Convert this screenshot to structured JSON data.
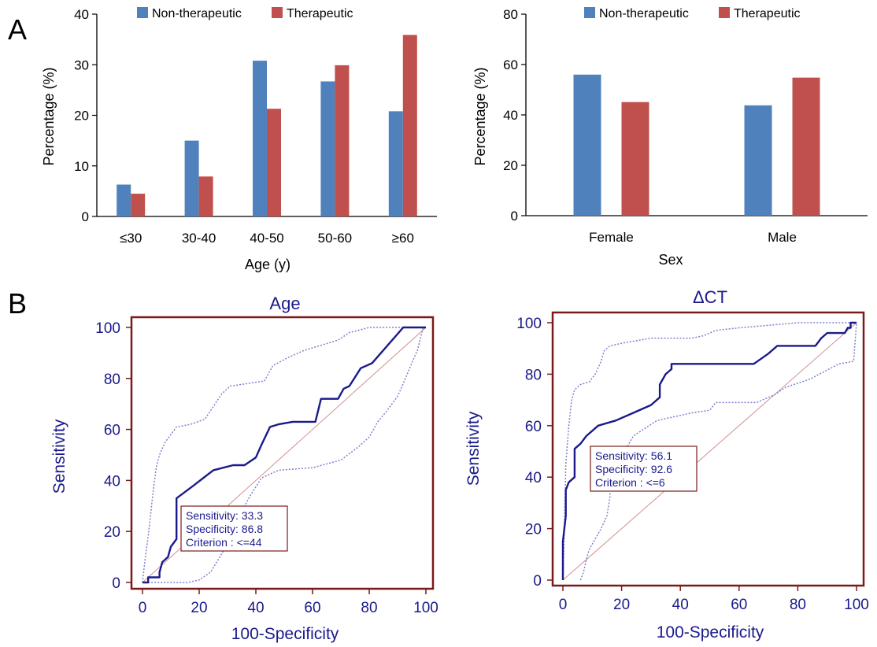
{
  "panel_labels": [
    "A",
    "B"
  ],
  "chart_data": [
    {
      "type": "bar",
      "panel": "A",
      "categories": [
        "≤30",
        "30-40",
        "40-50",
        "50-60",
        "≥60"
      ],
      "series": [
        {
          "name": "Non-therapeutic",
          "values": [
            6.3,
            15.0,
            30.8,
            26.7,
            20.8
          ]
        },
        {
          "name": "Therapeutic",
          "values": [
            4.5,
            7.9,
            21.3,
            29.9,
            35.9
          ]
        }
      ],
      "xlabel": "Age (y)",
      "ylabel": "Percentage (%)",
      "ylim": [
        0,
        40
      ],
      "yticks": [
        0,
        10,
        20,
        30,
        40
      ],
      "colors": [
        "#4f81bd",
        "#c0504d"
      ],
      "legend": "top"
    },
    {
      "type": "bar",
      "panel": "A",
      "categories": [
        "Female",
        "Male"
      ],
      "series": [
        {
          "name": "Non-therapeutic",
          "values": [
            56.0,
            43.8
          ]
        },
        {
          "name": "Therapeutic",
          "values": [
            45.1,
            54.8
          ]
        }
      ],
      "xlabel": "Sex",
      "ylabel": "Percentage (%)",
      "ylim": [
        0,
        80
      ],
      "yticks": [
        0,
        20,
        40,
        60,
        80
      ],
      "colors": [
        "#4f81bd",
        "#c0504d"
      ],
      "legend": "top"
    },
    {
      "type": "line",
      "panel": "B",
      "title": "Age",
      "xlabel": "100-Specificity",
      "ylabel": "Sensitivity",
      "xlim": [
        0,
        100
      ],
      "ylim": [
        0,
        100
      ],
      "ticks": [
        0,
        20,
        40,
        60,
        80,
        100
      ],
      "roc": [
        [
          0,
          0
        ],
        [
          2,
          0
        ],
        [
          2,
          2
        ],
        [
          6,
          2
        ],
        [
          6,
          4
        ],
        [
          7,
          8
        ],
        [
          9,
          10
        ],
        [
          10,
          14
        ],
        [
          12,
          17
        ],
        [
          12,
          33
        ],
        [
          18,
          38
        ],
        [
          25,
          44
        ],
        [
          32,
          46
        ],
        [
          36,
          46
        ],
        [
          40,
          49
        ],
        [
          42,
          54
        ],
        [
          45,
          61
        ],
        [
          48,
          62
        ],
        [
          53,
          63
        ],
        [
          61,
          63
        ],
        [
          63,
          72
        ],
        [
          69,
          72
        ],
        [
          71,
          76
        ],
        [
          73,
          77
        ],
        [
          77,
          84
        ],
        [
          81,
          86
        ],
        [
          92,
          100
        ],
        [
          100,
          100
        ]
      ],
      "ci_upper": [
        [
          0,
          0
        ],
        [
          1,
          10
        ],
        [
          2,
          18
        ],
        [
          3,
          28
        ],
        [
          4,
          38
        ],
        [
          5,
          46
        ],
        [
          6,
          50
        ],
        [
          8,
          55
        ],
        [
          10,
          58
        ],
        [
          12,
          61
        ],
        [
          17,
          62
        ],
        [
          22,
          64
        ],
        [
          25,
          69
        ],
        [
          28,
          74
        ],
        [
          31,
          77
        ],
        [
          37,
          78
        ],
        [
          43,
          79
        ],
        [
          46,
          85
        ],
        [
          51,
          88
        ],
        [
          57,
          91
        ],
        [
          63,
          93
        ],
        [
          69,
          95
        ],
        [
          73,
          98
        ],
        [
          80,
          100
        ],
        [
          100,
          100
        ]
      ],
      "ci_lower": [
        [
          2,
          0
        ],
        [
          16,
          0
        ],
        [
          20,
          1
        ],
        [
          24,
          4
        ],
        [
          30,
          15
        ],
        [
          34,
          26
        ],
        [
          38,
          34
        ],
        [
          42,
          41
        ],
        [
          48,
          44
        ],
        [
          60,
          45
        ],
        [
          70,
          48
        ],
        [
          76,
          53
        ],
        [
          80,
          57
        ],
        [
          83,
          63
        ],
        [
          86,
          67
        ],
        [
          90,
          73
        ],
        [
          92,
          78
        ],
        [
          95,
          86
        ],
        [
          97,
          91
        ],
        [
          99,
          100
        ]
      ],
      "reference": [
        [
          0,
          0
        ],
        [
          100,
          100
        ]
      ],
      "annotation": [
        "Sensitivity: 33.3",
        "Specificity: 86.8",
        "Criterion : <=44"
      ],
      "colors": [
        "#1a1a8c",
        "#8080d0",
        "#d09090",
        "#7b1a1a"
      ]
    },
    {
      "type": "line",
      "panel": "B",
      "title": "ΔCT",
      "xlabel": "100-Specificity",
      "ylabel": "Sensitivity",
      "xlim": [
        0,
        100
      ],
      "ylim": [
        0,
        100
      ],
      "ticks": [
        0,
        20,
        40,
        60,
        80,
        100
      ],
      "roc": [
        [
          0,
          0
        ],
        [
          0,
          15
        ],
        [
          1,
          25
        ],
        [
          1,
          35
        ],
        [
          2,
          38
        ],
        [
          4,
          40
        ],
        [
          4,
          51
        ],
        [
          6,
          53
        ],
        [
          8,
          56
        ],
        [
          12,
          60
        ],
        [
          18,
          62
        ],
        [
          24,
          65
        ],
        [
          30,
          68
        ],
        [
          33,
          71
        ],
        [
          33,
          76
        ],
        [
          35,
          80
        ],
        [
          37,
          82
        ],
        [
          37,
          84
        ],
        [
          65,
          84
        ],
        [
          70,
          88
        ],
        [
          73,
          91
        ],
        [
          86,
          91
        ],
        [
          88,
          94
        ],
        [
          90,
          96
        ],
        [
          96,
          96
        ],
        [
          97,
          98
        ],
        [
          98,
          98
        ],
        [
          98,
          100
        ],
        [
          100,
          100
        ]
      ],
      "ci_upper": [
        [
          0,
          0
        ],
        [
          0.5,
          20
        ],
        [
          1,
          45
        ],
        [
          2,
          60
        ],
        [
          3,
          70
        ],
        [
          4,
          74
        ],
        [
          6,
          76
        ],
        [
          9,
          77
        ],
        [
          11,
          80
        ],
        [
          13,
          85
        ],
        [
          14,
          89
        ],
        [
          16,
          91
        ],
        [
          20,
          92
        ],
        [
          30,
          94
        ],
        [
          44,
          94
        ],
        [
          48,
          95
        ],
        [
          52,
          97
        ],
        [
          60,
          98
        ],
        [
          70,
          99
        ],
        [
          80,
          100
        ],
        [
          100,
          100
        ]
      ],
      "ci_lower": [
        [
          6,
          0
        ],
        [
          7,
          3
        ],
        [
          8,
          8
        ],
        [
          9,
          12
        ],
        [
          11,
          16
        ],
        [
          13,
          20
        ],
        [
          15,
          25
        ],
        [
          16,
          32
        ],
        [
          16,
          41
        ],
        [
          19,
          46
        ],
        [
          24,
          56
        ],
        [
          32,
          62
        ],
        [
          44,
          65
        ],
        [
          50,
          66
        ],
        [
          52,
          69
        ],
        [
          66,
          69
        ],
        [
          72,
          72
        ],
        [
          76,
          75
        ],
        [
          84,
          78
        ],
        [
          94,
          84
        ],
        [
          99,
          85
        ],
        [
          100,
          100
        ]
      ],
      "reference": [
        [
          0,
          0
        ],
        [
          100,
          100
        ]
      ],
      "annotation": [
        "Sensitivity: 56.1",
        "Specificity: 92.6",
        "Criterion : <=6"
      ],
      "colors": [
        "#1a1a8c",
        "#8080d0",
        "#d09090",
        "#7b1a1a"
      ]
    }
  ]
}
